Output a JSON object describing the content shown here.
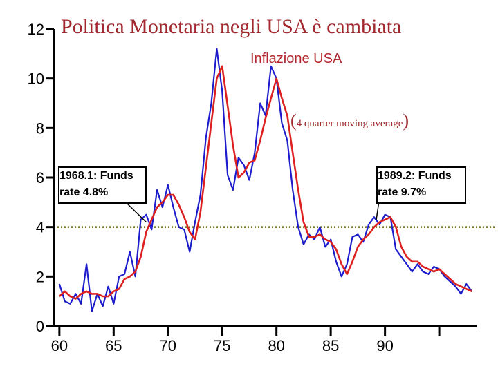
{
  "chart_data": {
    "type": "line",
    "title": "Politica Monetaria negli USA è cambiata",
    "subtitle": "Inflazione USA",
    "note_prefix": "(",
    "note_text": "4 quarter moving average",
    "note_suffix": ")",
    "xlim": [
      1959.5,
      1998.5
    ],
    "ylim": [
      0,
      12
    ],
    "x_ticks": [
      60,
      65,
      70,
      75,
      80,
      85,
      90
    ],
    "y_ticks": [
      0,
      2,
      4,
      6,
      8,
      10,
      12
    ],
    "reference_line": {
      "y": 4,
      "style": "dotted",
      "color": "#6b6b00"
    },
    "annotations": [
      {
        "id": "left",
        "line1": "1968.1: Funds",
        "line2": "rate 4.8%",
        "x": 1968.0,
        "y": 4.2
      },
      {
        "id": "right",
        "line1": "1989.2: Funds",
        "line2": "rate 9.7%",
        "x": 1989.2,
        "y": 4.3
      }
    ],
    "series": [
      {
        "name": "Inflazione USA (quarterly)",
        "color": "#1c1ccc",
        "points": [
          [
            1960.0,
            1.7
          ],
          [
            1960.5,
            1.0
          ],
          [
            1961.0,
            0.9
          ],
          [
            1961.5,
            1.3
          ],
          [
            1962.0,
            0.9
          ],
          [
            1962.5,
            2.5
          ],
          [
            1963.0,
            0.6
          ],
          [
            1963.5,
            1.3
          ],
          [
            1964.0,
            0.8
          ],
          [
            1964.5,
            1.6
          ],
          [
            1965.0,
            0.9
          ],
          [
            1965.5,
            2.0
          ],
          [
            1966.0,
            2.1
          ],
          [
            1966.5,
            3.0
          ],
          [
            1967.0,
            2.0
          ],
          [
            1967.5,
            4.3
          ],
          [
            1968.0,
            4.5
          ],
          [
            1968.5,
            3.9
          ],
          [
            1969.0,
            5.5
          ],
          [
            1969.5,
            4.8
          ],
          [
            1970.0,
            5.7
          ],
          [
            1970.5,
            4.8
          ],
          [
            1971.0,
            4.0
          ],
          [
            1971.5,
            3.9
          ],
          [
            1972.0,
            3.0
          ],
          [
            1972.5,
            4.2
          ],
          [
            1973.0,
            5.3
          ],
          [
            1973.5,
            7.6
          ],
          [
            1974.0,
            9.0
          ],
          [
            1974.5,
            11.2
          ],
          [
            1975.0,
            9.5
          ],
          [
            1975.5,
            6.1
          ],
          [
            1976.0,
            5.5
          ],
          [
            1976.5,
            6.8
          ],
          [
            1977.0,
            6.5
          ],
          [
            1977.5,
            5.9
          ],
          [
            1978.0,
            7.0
          ],
          [
            1978.5,
            9.0
          ],
          [
            1979.0,
            8.5
          ],
          [
            1979.5,
            10.5
          ],
          [
            1980.0,
            10.0
          ],
          [
            1980.5,
            8.2
          ],
          [
            1981.0,
            7.5
          ],
          [
            1981.5,
            5.5
          ],
          [
            1982.0,
            4.0
          ],
          [
            1982.5,
            3.3
          ],
          [
            1983.0,
            3.7
          ],
          [
            1983.5,
            3.5
          ],
          [
            1984.0,
            4.0
          ],
          [
            1984.5,
            3.2
          ],
          [
            1985.0,
            3.5
          ],
          [
            1985.5,
            2.6
          ],
          [
            1986.0,
            2.0
          ],
          [
            1986.5,
            2.5
          ],
          [
            1987.0,
            3.6
          ],
          [
            1987.5,
            3.7
          ],
          [
            1988.0,
            3.4
          ],
          [
            1988.5,
            4.1
          ],
          [
            1989.0,
            4.4
          ],
          [
            1989.5,
            4.1
          ],
          [
            1990.0,
            4.5
          ],
          [
            1990.5,
            4.4
          ],
          [
            1991.0,
            3.1
          ],
          [
            1991.5,
            2.8
          ],
          [
            1992.0,
            2.5
          ],
          [
            1992.5,
            2.2
          ],
          [
            1993.0,
            2.5
          ],
          [
            1993.5,
            2.2
          ],
          [
            1994.0,
            2.1
          ],
          [
            1994.5,
            2.4
          ],
          [
            1995.0,
            2.3
          ],
          [
            1995.5,
            2.0
          ],
          [
            1996.0,
            1.8
          ],
          [
            1996.5,
            1.6
          ],
          [
            1997.0,
            1.3
          ],
          [
            1997.5,
            1.7
          ],
          [
            1998.0,
            1.4
          ]
        ]
      },
      {
        "name": "Inflazione USA (4 quarter moving average)",
        "color": "#dd2020",
        "points": [
          [
            1960.0,
            1.2
          ],
          [
            1960.5,
            1.4
          ],
          [
            1961.0,
            1.2
          ],
          [
            1961.5,
            1.1
          ],
          [
            1962.0,
            1.3
          ],
          [
            1962.5,
            1.4
          ],
          [
            1963.0,
            1.3
          ],
          [
            1963.5,
            1.3
          ],
          [
            1964.0,
            1.2
          ],
          [
            1964.5,
            1.2
          ],
          [
            1965.0,
            1.4
          ],
          [
            1965.5,
            1.5
          ],
          [
            1966.0,
            1.9
          ],
          [
            1966.5,
            2.0
          ],
          [
            1967.0,
            2.2
          ],
          [
            1967.5,
            2.8
          ],
          [
            1968.0,
            3.8
          ],
          [
            1968.5,
            4.3
          ],
          [
            1969.0,
            4.8
          ],
          [
            1969.5,
            5.0
          ],
          [
            1970.0,
            5.3
          ],
          [
            1970.5,
            5.3
          ],
          [
            1971.0,
            4.9
          ],
          [
            1971.5,
            4.4
          ],
          [
            1972.0,
            3.8
          ],
          [
            1972.5,
            3.5
          ],
          [
            1973.0,
            4.6
          ],
          [
            1973.5,
            6.4
          ],
          [
            1974.0,
            8.2
          ],
          [
            1974.5,
            10.0
          ],
          [
            1975.0,
            10.5
          ],
          [
            1975.5,
            8.9
          ],
          [
            1976.0,
            7.3
          ],
          [
            1976.5,
            6.0
          ],
          [
            1977.0,
            6.2
          ],
          [
            1977.5,
            6.6
          ],
          [
            1978.0,
            6.7
          ],
          [
            1978.5,
            7.5
          ],
          [
            1979.0,
            8.4
          ],
          [
            1979.5,
            9.2
          ],
          [
            1980.0,
            10.0
          ],
          [
            1980.5,
            9.2
          ],
          [
            1981.0,
            8.5
          ],
          [
            1981.5,
            7.0
          ],
          [
            1982.0,
            5.5
          ],
          [
            1982.5,
            4.2
          ],
          [
            1983.0,
            3.6
          ],
          [
            1983.5,
            3.6
          ],
          [
            1984.0,
            3.7
          ],
          [
            1984.5,
            3.5
          ],
          [
            1985.0,
            3.4
          ],
          [
            1985.5,
            3.1
          ],
          [
            1986.0,
            2.5
          ],
          [
            1986.5,
            2.1
          ],
          [
            1987.0,
            2.6
          ],
          [
            1987.5,
            3.2
          ],
          [
            1988.0,
            3.5
          ],
          [
            1988.5,
            3.7
          ],
          [
            1989.0,
            4.0
          ],
          [
            1989.5,
            4.2
          ],
          [
            1990.0,
            4.3
          ],
          [
            1990.5,
            4.4
          ],
          [
            1991.0,
            4.0
          ],
          [
            1991.5,
            3.2
          ],
          [
            1992.0,
            2.8
          ],
          [
            1992.5,
            2.6
          ],
          [
            1993.0,
            2.6
          ],
          [
            1993.5,
            2.4
          ],
          [
            1994.0,
            2.3
          ],
          [
            1994.5,
            2.2
          ],
          [
            1995.0,
            2.3
          ],
          [
            1995.5,
            2.1
          ],
          [
            1996.0,
            1.9
          ],
          [
            1996.5,
            1.7
          ],
          [
            1997.0,
            1.6
          ],
          [
            1997.5,
            1.5
          ],
          [
            1998.0,
            1.4
          ]
        ]
      }
    ]
  }
}
